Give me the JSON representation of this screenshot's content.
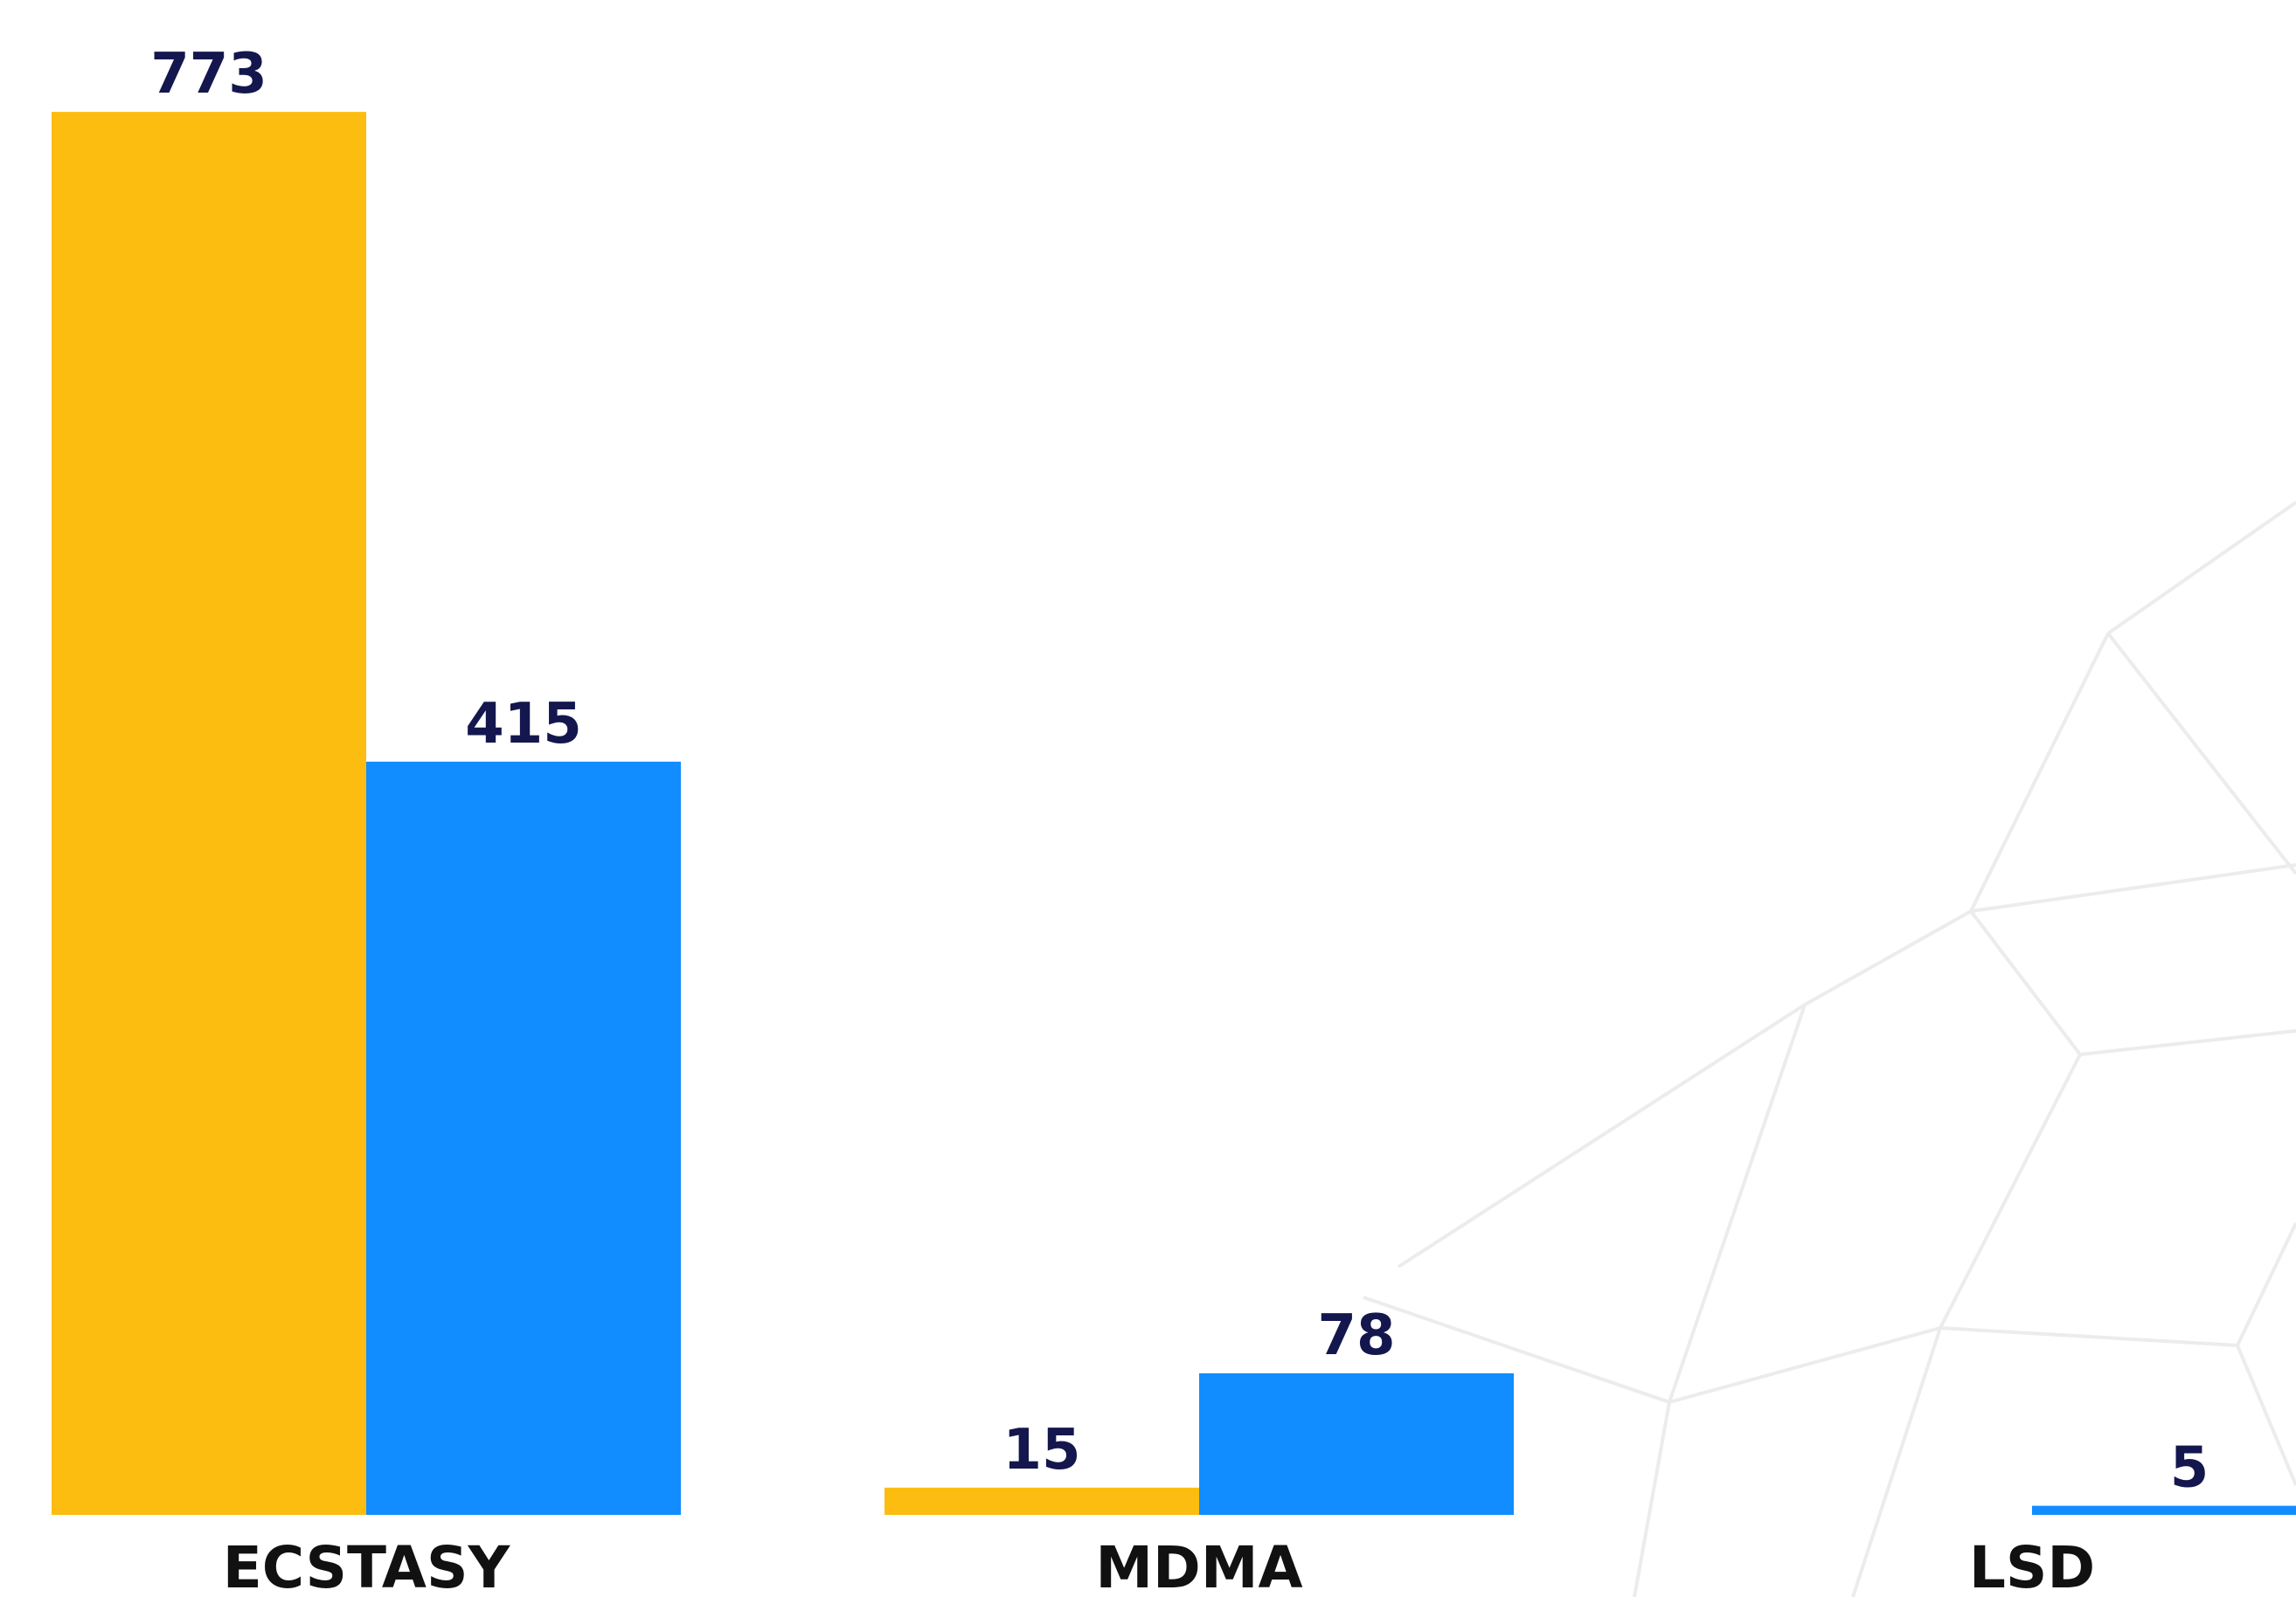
{
  "chart_data": {
    "type": "bar",
    "categories": [
      "ECSTASY",
      "MDMA",
      "LSD"
    ],
    "series": [
      {
        "color": "#fdbd10",
        "values": [
          773,
          15,
          null
        ]
      },
      {
        "color": "#118dff",
        "values": [
          415,
          78,
          5
        ]
      }
    ],
    "ylim": [
      0,
      800
    ]
  }
}
